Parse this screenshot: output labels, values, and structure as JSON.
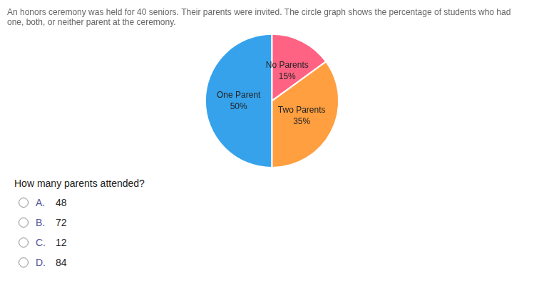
{
  "chart_data": {
    "type": "pie",
    "title": [
      "An honors ceremony was held for 40 seniors. Their parents were invited. The circle graph shows the percentage of students who had",
      "one, both, or neither parent at the ceremony."
    ],
    "categories": [
      "One Parent",
      "No Parents",
      "Two Parents"
    ],
    "values": [
      50,
      15,
      35
    ],
    "value_labels": [
      "50%",
      "15%",
      "35%"
    ],
    "data_labels": true,
    "annotations": [
      "How many parents attended?",
      [
        "A.",
        "48"
      ],
      [
        "B.",
        "72"
      ],
      [
        "C.",
        "12"
      ],
      [
        "D.",
        "84"
      ]
    ]
  }
}
